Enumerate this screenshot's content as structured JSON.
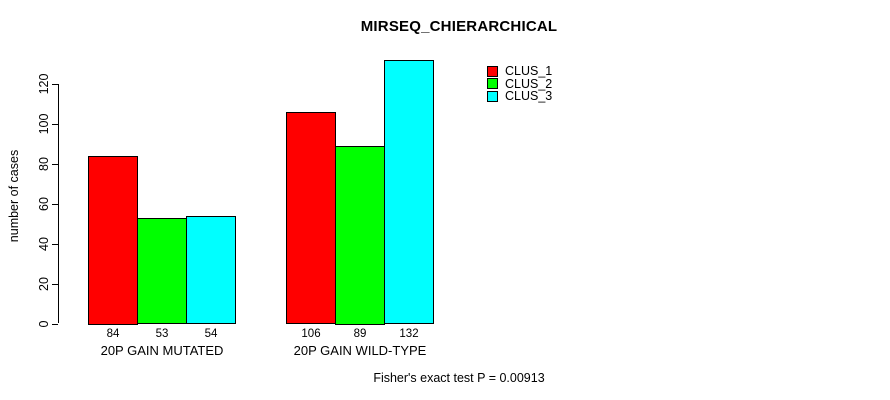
{
  "chart_data": {
    "type": "bar",
    "title": "MIRSEQ_CHIERARCHICAL",
    "ylabel": "number of cases",
    "footnote": "Fisher's exact test P = 0.00913",
    "categories": [
      "20P GAIN MUTATED",
      "20P GAIN WILD-TYPE"
    ],
    "series": [
      {
        "name": "CLUS_1",
        "color": "#ff0000",
        "values": [
          84,
          106
        ]
      },
      {
        "name": "CLUS_2",
        "color": "#00ff00",
        "values": [
          53,
          89
        ]
      },
      {
        "name": "CLUS_3",
        "color": "#00ffff",
        "values": [
          54,
          132
        ]
      }
    ],
    "yticks": [
      0,
      20,
      40,
      60,
      80,
      100,
      120
    ],
    "ylim": [
      0,
      132
    ],
    "grid": false,
    "legend_position": "top-right",
    "background": "#ffffff",
    "axis_color": "#000000"
  }
}
